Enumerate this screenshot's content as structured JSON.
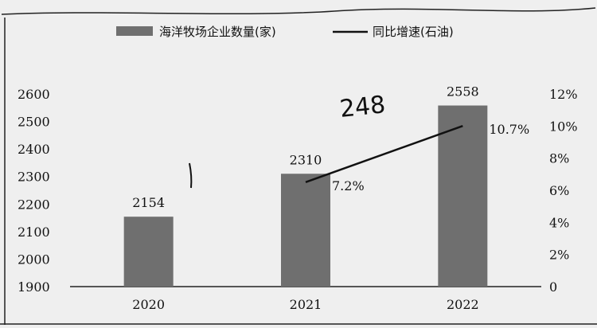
{
  "chart_data": {
    "type": "bar",
    "title": "",
    "xlabel": "",
    "ylabel": "",
    "categories": [
      "2020",
      "2021",
      "2022"
    ],
    "series": [
      {
        "name": "海洋牧场企业数量(家)",
        "type": "bar",
        "axis": "left",
        "values": [
          2154,
          2310,
          2558
        ],
        "labels": [
          "2154",
          "2310",
          "2558"
        ],
        "color": "#6f6f6f"
      },
      {
        "name": "同比增速(石油)",
        "type": "line",
        "axis": "right",
        "values": [
          null,
          7.2,
          10.7
        ],
        "labels": [
          "",
          "7.2%",
          "10.7%"
        ],
        "color": "#111111"
      }
    ],
    "ylim": [
      1900,
      2600
    ],
    "yticks": [
      "1900",
      "2000",
      "2100",
      "2200",
      "2300",
      "2400",
      "2500",
      "2600"
    ],
    "y2lim": [
      0,
      12
    ],
    "y2ticks": [
      "0",
      "2%",
      "4%",
      "6%",
      "8%",
      "10%",
      "12%"
    ],
    "legend_position": "top",
    "grid": false
  },
  "annotations": {
    "handwritten_248": "248"
  }
}
